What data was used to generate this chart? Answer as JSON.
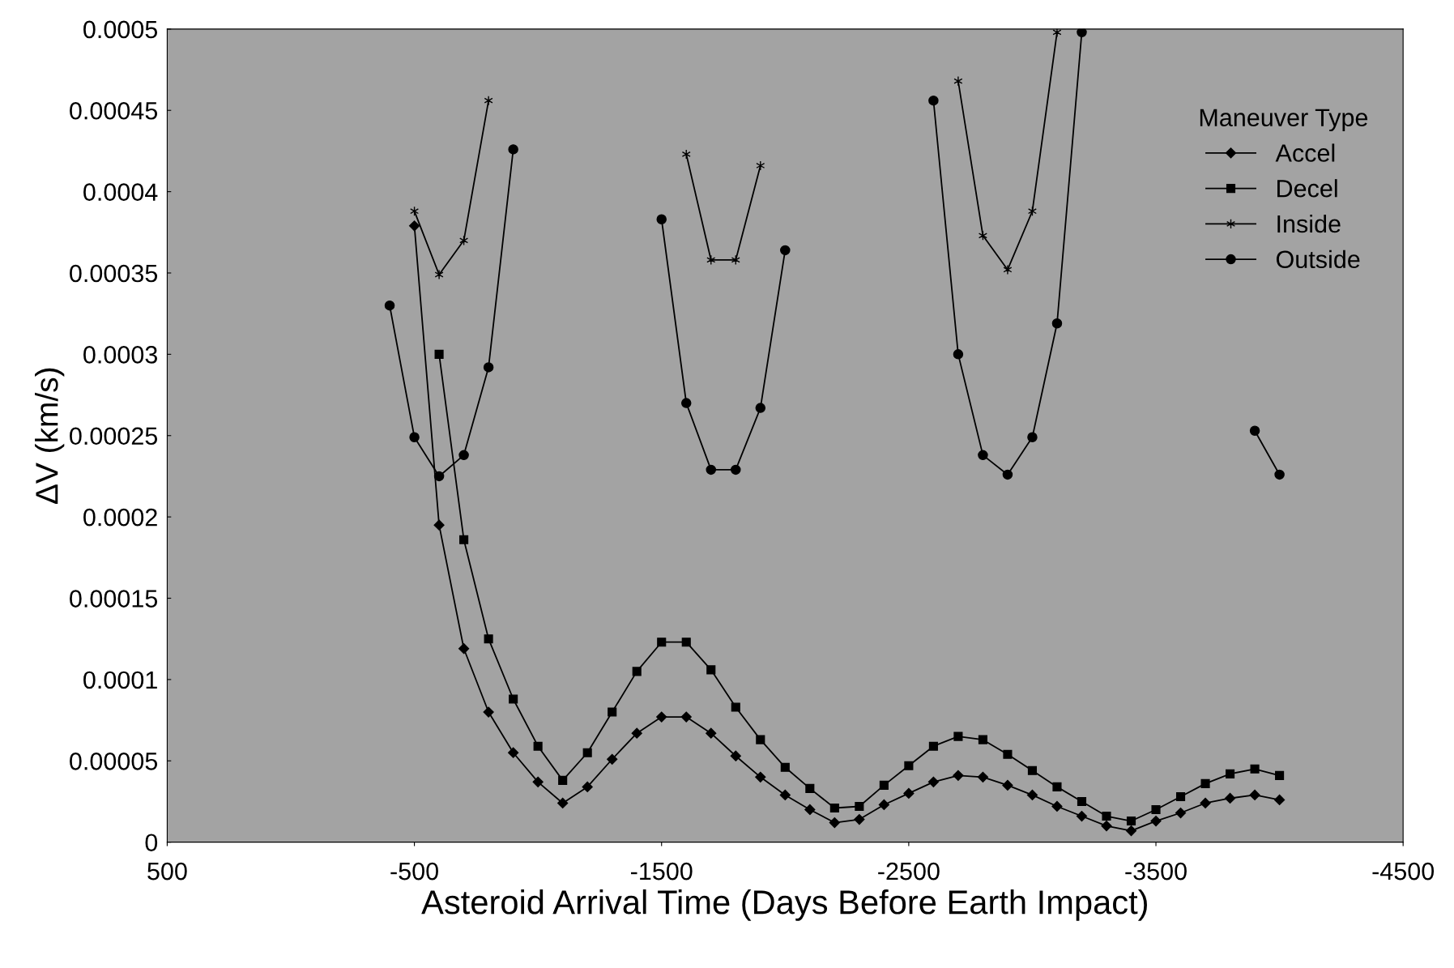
{
  "chart_data": {
    "type": "line",
    "xlabel": "Asteroid Arrival Time (Days Before Earth Impact)",
    "ylabel": "ΔV (km/s)",
    "legend_title": "Maneuver Type",
    "legend": "top right",
    "grid": false,
    "xlim": [
      500,
      -4500
    ],
    "xticks": [
      500,
      -500,
      -1500,
      -2500,
      -3500,
      -4500
    ],
    "ylim": [
      0,
      0.0005
    ],
    "yticks": [
      {
        "value": 0,
        "label": "0"
      },
      {
        "value": 5e-05,
        "label": "0.00005"
      },
      {
        "value": 0.0001,
        "label": "0.0001"
      },
      {
        "value": 0.00015,
        "label": "0.00015"
      },
      {
        "value": 0.0002,
        "label": "0.0002"
      },
      {
        "value": 0.00025,
        "label": "0.00025"
      },
      {
        "value": 0.0003,
        "label": "0.0003"
      },
      {
        "value": 0.00035,
        "label": "0.00035"
      },
      {
        "value": 0.0004,
        "label": "0.0004"
      },
      {
        "value": 0.00045,
        "label": "0.00045"
      },
      {
        "value": 0.0005,
        "label": "0.0005"
      }
    ],
    "x": [
      -400,
      -500,
      -600,
      -700,
      -800,
      -900,
      -1000,
      -1100,
      -1200,
      -1300,
      -1400,
      -1500,
      -1600,
      -1700,
      -1800,
      -1900,
      -2000,
      -2100,
      -2200,
      -2300,
      -2400,
      -2500,
      -2600,
      -2700,
      -2800,
      -2900,
      -3000,
      -3100,
      -3200,
      -3300,
      -3400,
      -3500,
      -3600,
      -3700,
      -3800,
      -3900,
      -4000
    ],
    "series": [
      {
        "name": "Accel",
        "color": "#000000",
        "marker": "diamond",
        "values": [
          null,
          0.000379,
          0.000195,
          0.000119,
          8e-05,
          5.5e-05,
          3.7e-05,
          2.4e-05,
          3.4e-05,
          5.1e-05,
          6.7e-05,
          7.7e-05,
          7.7e-05,
          6.7e-05,
          5.3e-05,
          4e-05,
          2.9e-05,
          2e-05,
          1.2e-05,
          1.4e-05,
          2.3e-05,
          3e-05,
          3.7e-05,
          4.1e-05,
          4e-05,
          3.5e-05,
          2.9e-05,
          2.2e-05,
          1.6e-05,
          1e-05,
          7e-06,
          1.3e-05,
          1.8e-05,
          2.4e-05,
          2.7e-05,
          2.9e-05,
          2.6e-05
        ]
      },
      {
        "name": "Decel",
        "color": "#000000",
        "marker": "square",
        "values": [
          null,
          null,
          0.0003,
          0.000186,
          0.000125,
          8.8e-05,
          5.9e-05,
          3.8e-05,
          5.5e-05,
          8e-05,
          0.000105,
          0.000123,
          0.000123,
          0.000106,
          8.3e-05,
          6.3e-05,
          4.6e-05,
          3.3e-05,
          2.1e-05,
          2.2e-05,
          3.5e-05,
          4.7e-05,
          5.9e-05,
          6.5e-05,
          6.3e-05,
          5.4e-05,
          4.4e-05,
          3.4e-05,
          2.5e-05,
          1.6e-05,
          1.3e-05,
          2e-05,
          2.8e-05,
          3.6e-05,
          4.2e-05,
          4.5e-05,
          4.1e-05
        ]
      },
      {
        "name": "Inside",
        "color": "#000000",
        "marker": "cross",
        "values": [
          null,
          0.000388,
          0.000349,
          0.00037,
          0.000456,
          null,
          null,
          null,
          null,
          null,
          null,
          null,
          0.000423,
          0.000358,
          0.000358,
          0.000416,
          null,
          null,
          null,
          null,
          null,
          null,
          null,
          0.000468,
          0.000373,
          0.000352,
          0.000388,
          0.000498,
          null,
          null,
          null,
          null,
          null,
          null,
          null,
          null,
          null
        ]
      },
      {
        "name": "Outside",
        "color": "#000000",
        "marker": "circle",
        "values": [
          0.00033,
          0.000249,
          0.000225,
          0.000238,
          0.000292,
          0.000426,
          null,
          null,
          null,
          null,
          null,
          0.000383,
          0.00027,
          0.000229,
          0.000229,
          0.000267,
          0.000364,
          null,
          null,
          null,
          null,
          null,
          0.000456,
          0.0003,
          0.000238,
          0.000226,
          0.000249,
          0.000319,
          0.000498,
          null,
          null,
          null,
          null,
          null,
          null,
          0.000253,
          0.000226
        ]
      }
    ]
  }
}
